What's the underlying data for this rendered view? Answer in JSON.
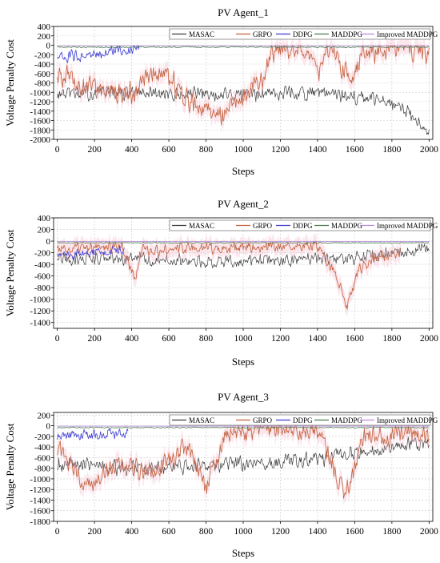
{
  "chart_data": [
    {
      "type": "line",
      "title": "PV Agent_1",
      "xlabel": "Steps",
      "ylabel": "Voltage Penalty Cost",
      "xlim": [
        -20,
        2020
      ],
      "ylim": [
        -2000,
        400
      ],
      "xticks": [
        0,
        200,
        400,
        600,
        800,
        1000,
        1200,
        1400,
        1600,
        1800,
        2000
      ],
      "yticks": [
        400,
        200,
        0,
        -200,
        -400,
        -600,
        -800,
        -1000,
        -1200,
        -1400,
        -1600,
        -1800,
        -2000
      ],
      "grid": true,
      "legend": "top",
      "series": [
        {
          "name": "MASAC",
          "color": "#3a3a3a",
          "x_range": [
            0,
            2000
          ],
          "trend": [
            [
              0,
              -1050
            ],
            [
              300,
              -1000
            ],
            [
              600,
              -1050
            ],
            [
              900,
              -1050
            ],
            [
              1200,
              -1000
            ],
            [
              1500,
              -1050
            ],
            [
              1700,
              -1150
            ],
            [
              1850,
              -1350
            ],
            [
              2000,
              -1800
            ]
          ],
          "noise": 220
        },
        {
          "name": "GRPO",
          "color": "#c2603c",
          "x_range": [
            0,
            2000
          ],
          "trend": [
            [
              0,
              -600
            ],
            [
              150,
              -900
            ],
            [
              400,
              -1000
            ],
            [
              550,
              -500
            ],
            [
              700,
              -1200
            ],
            [
              900,
              -1500
            ],
            [
              1100,
              -700
            ],
            [
              1150,
              -100
            ],
            [
              1350,
              -40
            ],
            [
              1400,
              -700
            ],
            [
              1450,
              -100
            ],
            [
              1600,
              -700
            ],
            [
              1650,
              -80
            ],
            [
              2000,
              -100
            ]
          ],
          "noise": 350
        },
        {
          "name": "DDPG",
          "color": "#3a3ad0",
          "x_range": [
            0,
            440
          ],
          "trend": [
            [
              0,
              -250
            ],
            [
              200,
              -200
            ],
            [
              440,
              -50
            ]
          ],
          "noise": 180
        },
        {
          "name": "MADDPG",
          "color": "#4a7a50",
          "x_range": [
            0,
            2000
          ],
          "trend": [
            [
              0,
              -40
            ],
            [
              2000,
              -40
            ]
          ],
          "noise": 20
        },
        {
          "name": "Improved MADDPG",
          "color": "#b38ad8",
          "x_range": [
            0,
            2000
          ],
          "trend": [
            [
              0,
              -10
            ],
            [
              2000,
              -10
            ]
          ],
          "noise": 4
        }
      ]
    },
    {
      "type": "line",
      "title": "PV Agent_2",
      "xlabel": "Steps",
      "ylabel": "Voltage Penalty Cost",
      "xlim": [
        -20,
        2020
      ],
      "ylim": [
        -1500,
        400
      ],
      "xticks": [
        0,
        200,
        400,
        600,
        800,
        1000,
        1200,
        1400,
        1600,
        1800,
        2000
      ],
      "yticks": [
        400,
        200,
        0,
        -200,
        -400,
        -600,
        -800,
        -1000,
        -1200,
        -1400
      ],
      "grid": true,
      "legend": "top",
      "series": [
        {
          "name": "MASAC",
          "color": "#3a3a3a",
          "x_range": [
            0,
            2000
          ],
          "trend": [
            [
              0,
              -320
            ],
            [
              400,
              -300
            ],
            [
              800,
              -350
            ],
            [
              1200,
              -330
            ],
            [
              1600,
              -300
            ],
            [
              2000,
              -120
            ]
          ],
          "noise": 160
        },
        {
          "name": "GRPO",
          "color": "#c2603c",
          "x_range": [
            0,
            1850
          ],
          "trend": [
            [
              0,
              -150
            ],
            [
              350,
              -100
            ],
            [
              420,
              -700
            ],
            [
              450,
              -150
            ],
            [
              1400,
              -80
            ],
            [
              1480,
              -500
            ],
            [
              1560,
              -1100
            ],
            [
              1620,
              -500
            ],
            [
              1700,
              -300
            ],
            [
              1850,
              -200
            ]
          ],
          "noise": 140
        },
        {
          "name": "DDPG",
          "color": "#3a3ad0",
          "x_range": [
            0,
            360
          ],
          "trend": [
            [
              0,
              -250
            ],
            [
              360,
              -150
            ]
          ],
          "noise": 130
        },
        {
          "name": "MADDPG",
          "color": "#4a7a50",
          "x_range": [
            0,
            2000
          ],
          "trend": [
            [
              0,
              -30
            ],
            [
              2000,
              -30
            ]
          ],
          "noise": 15
        },
        {
          "name": "Improved MADDPG",
          "color": "#b38ad8",
          "x_range": [
            0,
            2000
          ],
          "trend": [
            [
              0,
              -8
            ],
            [
              2000,
              -8
            ]
          ],
          "noise": 3
        }
      ]
    },
    {
      "type": "line",
      "title": "PV Agent_3",
      "xlabel": "Steps",
      "ylabel": "Voltage Penalty Cost",
      "xlim": [
        -20,
        2020
      ],
      "ylim": [
        -1800,
        250
      ],
      "xticks": [
        0,
        200,
        400,
        600,
        800,
        1000,
        1200,
        1400,
        1600,
        1800,
        2000
      ],
      "yticks": [
        200,
        0,
        -200,
        -400,
        -600,
        -800,
        -1000,
        -1200,
        -1400,
        -1600,
        -1800
      ],
      "grid": true,
      "legend": "top",
      "series": [
        {
          "name": "MASAC",
          "color": "#3a3a3a",
          "x_range": [
            0,
            2000
          ],
          "trend": [
            [
              0,
              -700
            ],
            [
              400,
              -800
            ],
            [
              800,
              -750
            ],
            [
              1200,
              -700
            ],
            [
              1600,
              -500
            ],
            [
              2000,
              -300
            ]
          ],
          "noise": 200
        },
        {
          "name": "GRPO",
          "color": "#c2603c",
          "x_range": [
            0,
            2000
          ],
          "trend": [
            [
              0,
              -400
            ],
            [
              150,
              -1200
            ],
            [
              300,
              -700
            ],
            [
              500,
              -900
            ],
            [
              700,
              -400
            ],
            [
              800,
              -1200
            ],
            [
              900,
              -200
            ],
            [
              1100,
              -50
            ],
            [
              1400,
              -100
            ],
            [
              1550,
              -1300
            ],
            [
              1650,
              -200
            ],
            [
              2000,
              -200
            ]
          ],
          "noise": 280
        },
        {
          "name": "DDPG",
          "color": "#3a3ad0",
          "x_range": [
            0,
            380
          ],
          "trend": [
            [
              0,
              -200
            ],
            [
              380,
              -120
            ]
          ],
          "noise": 140
        },
        {
          "name": "MADDPG",
          "color": "#4a7a50",
          "x_range": [
            0,
            2000
          ],
          "trend": [
            [
              0,
              -35
            ],
            [
              2000,
              -35
            ]
          ],
          "noise": 15
        },
        {
          "name": "Improved MADDPG",
          "color": "#b38ad8",
          "x_range": [
            0,
            2000
          ],
          "trend": [
            [
              0,
              -8
            ],
            [
              2000,
              -8
            ]
          ],
          "noise": 3
        }
      ]
    }
  ]
}
